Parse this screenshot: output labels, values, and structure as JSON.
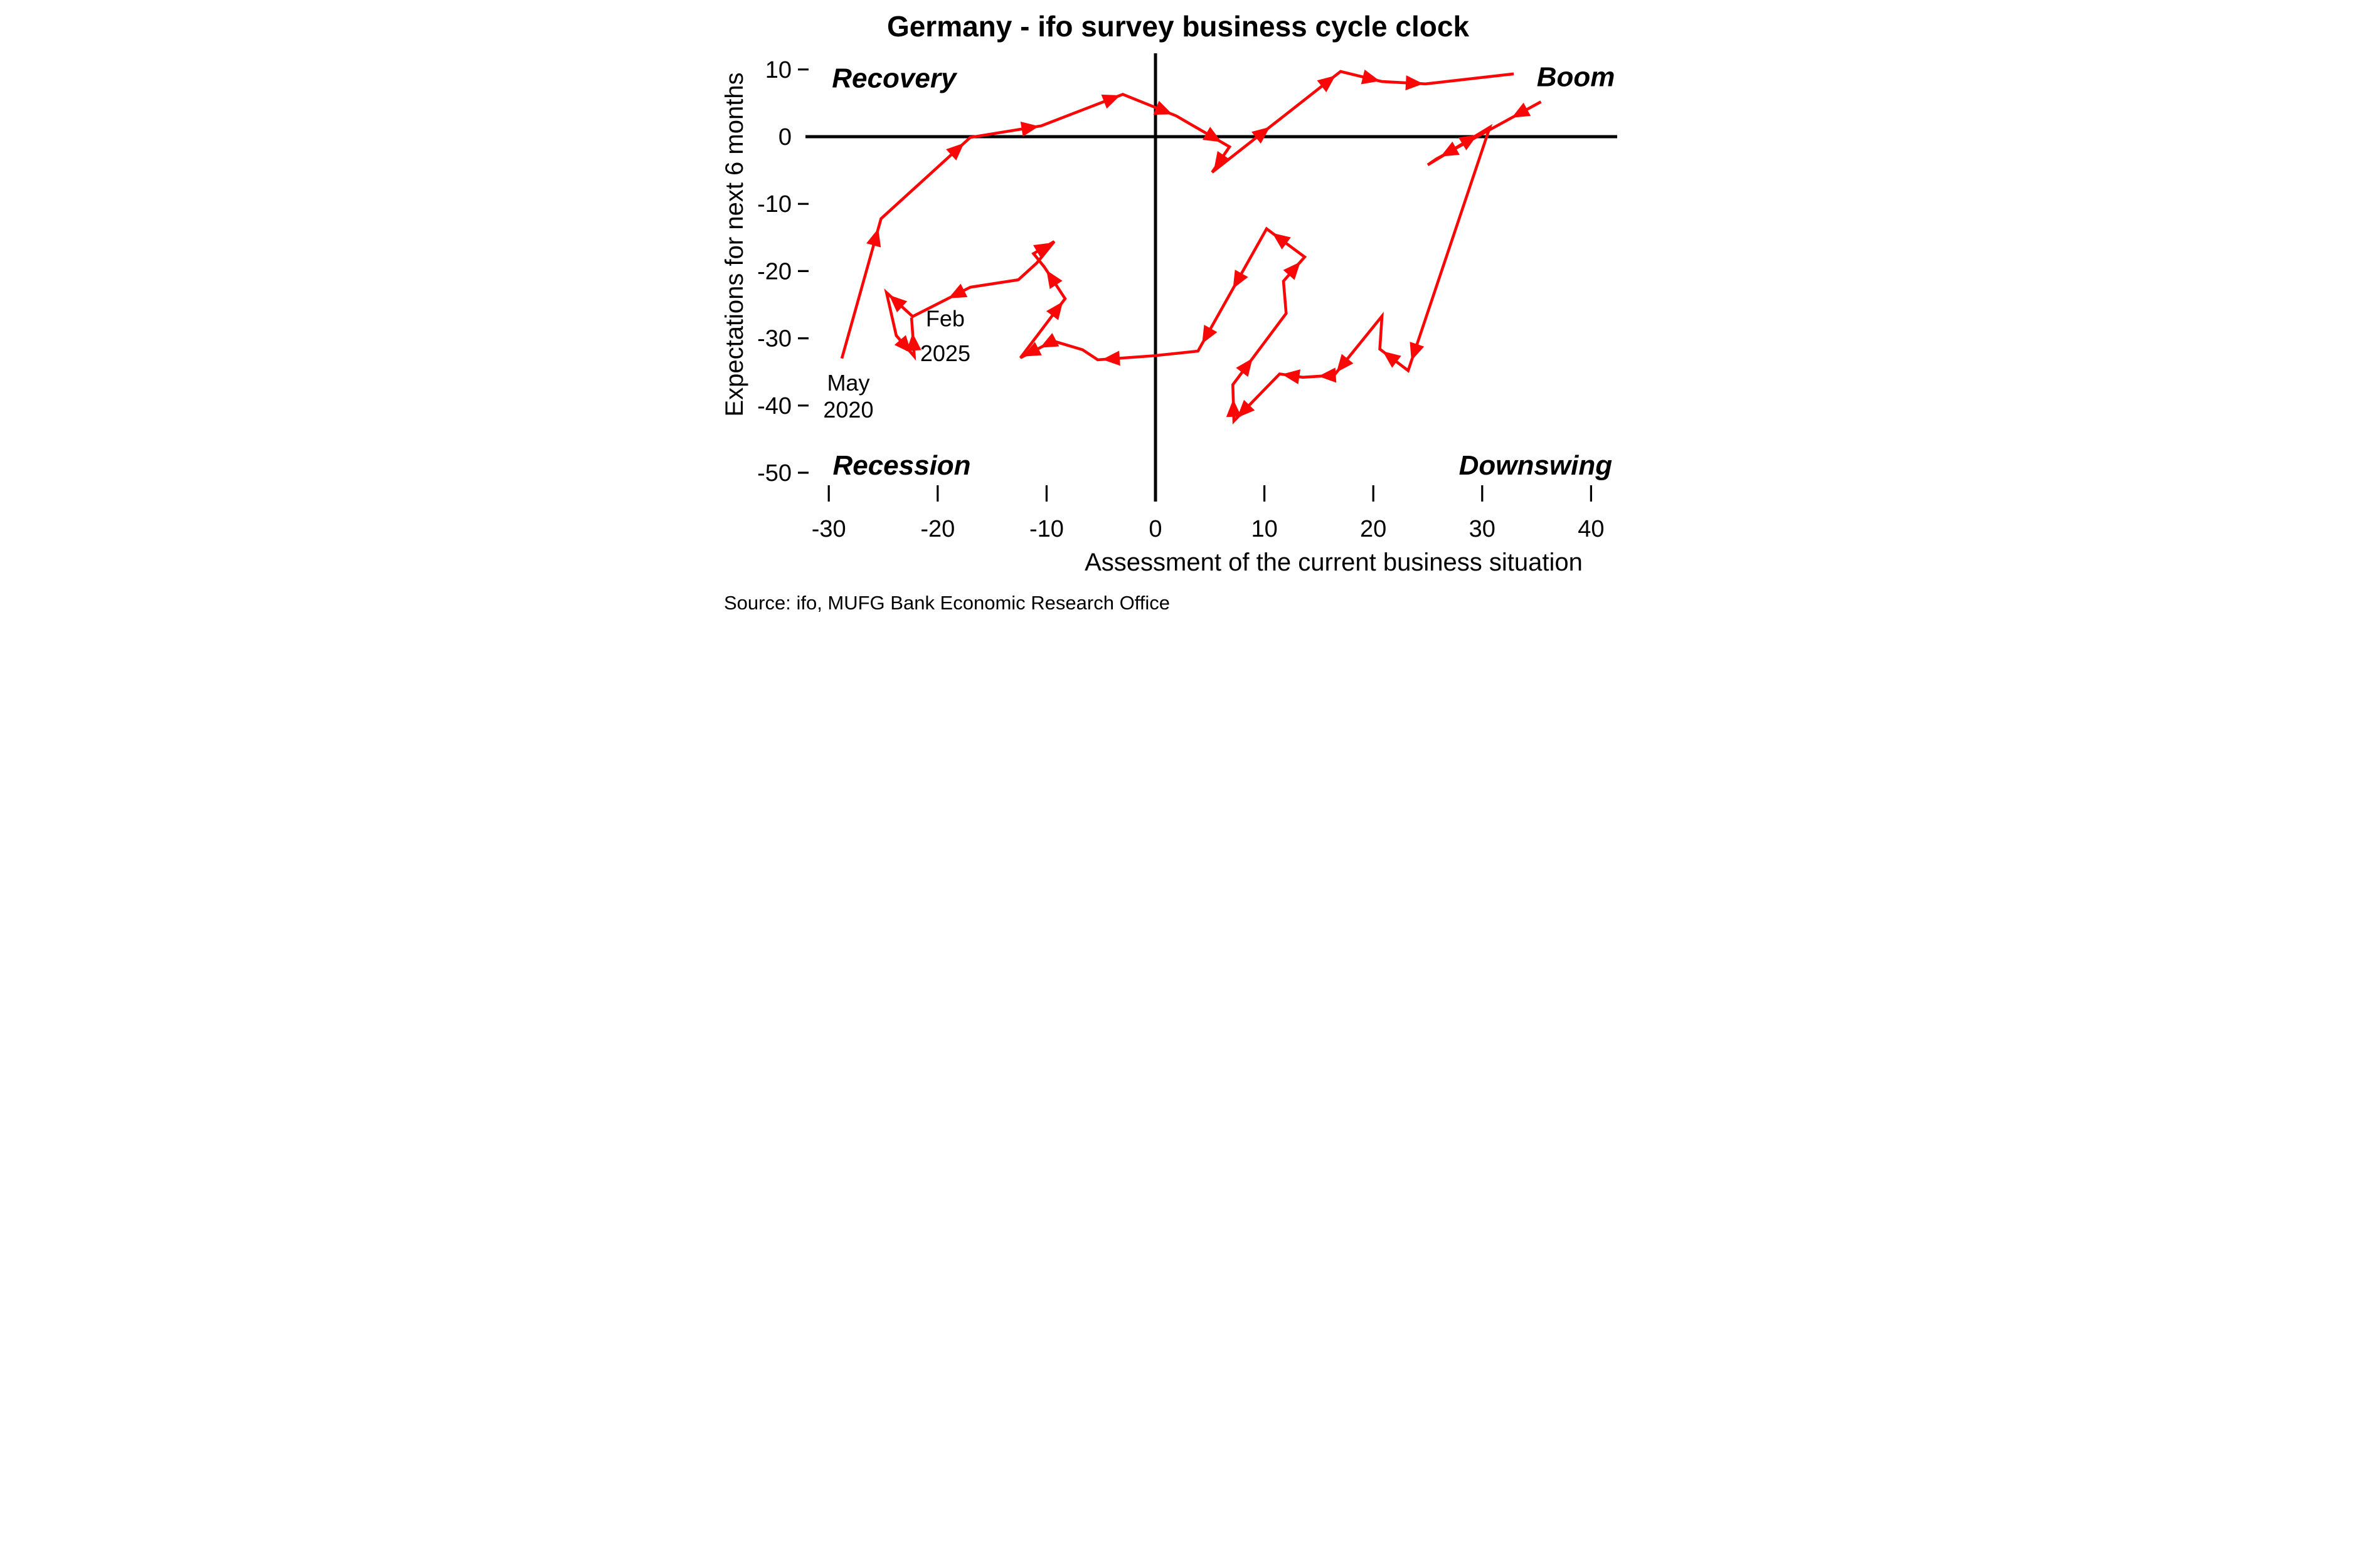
{
  "chart_data": {
    "type": "connected_scatter_path",
    "title": "Germany - ifo survey business cycle clock",
    "xlabel": "Assessment of the current business situation",
    "ylabel": "Expectations for next 6 months",
    "source": "Source: ifo, MUFG Bank Economic Research Office",
    "line_color": "#f90606",
    "axis_color": "#000000",
    "x_ticks": [
      -30,
      -20,
      -10,
      0,
      10,
      20,
      30,
      40
    ],
    "y_ticks": [
      10,
      0,
      -10,
      -20,
      -30,
      -40,
      -50
    ],
    "xlim": [
      -33,
      43
    ],
    "ylim": [
      -54,
      13
    ],
    "grid": false,
    "legend": "none",
    "quadrants": {
      "recovery": {
        "label": "Recovery",
        "x": -24.0,
        "y": 7.3
      },
      "boom": {
        "label": "Boom",
        "x": 38.6,
        "y": 7.5
      },
      "recession": {
        "label": "Recession",
        "x": -23.3,
        "y": -50.3
      },
      "downswing": {
        "label": "Downswing",
        "x": 34.9,
        "y": -50.3
      }
    },
    "annotations": {
      "start": {
        "line1": "May",
        "line2": "2020",
        "x": -28.2,
        "y1": -37.8,
        "y2": -41.8
      },
      "end": {
        "line1": "Feb",
        "line2": "2025",
        "x": -19.3,
        "y1": -28.2,
        "y2": -33.4
      }
    },
    "series": [
      {
        "x": -28.8,
        "y": -33.0
      },
      {
        "x": -25.2,
        "y": -12.2,
        "a": [
          0.93
        ]
      },
      {
        "x": -17.0,
        "y": -0.1,
        "a": [
          0.93
        ]
      },
      {
        "x": -10.5,
        "y": 1.6,
        "a": [
          0.97
        ]
      },
      {
        "x": -3.0,
        "y": 6.3,
        "a": [
          0.97
        ]
      },
      {
        "x": 1.9,
        "y": 3.1,
        "a": [
          0.93
        ]
      },
      {
        "x": 6.8,
        "y": -1.5,
        "a": [
          0.85
        ]
      },
      {
        "x": 5.2,
        "y": -5.3,
        "a": [
          0.9
        ]
      },
      {
        "x": 17.0,
        "y": 9.7,
        "a": [
          0.45,
          0.96
        ]
      },
      {
        "x": 20.8,
        "y": 8.2,
        "a": [
          0.95
        ]
      },
      {
        "x": 24.8,
        "y": 7.85,
        "a": [
          0.95
        ]
      },
      {
        "x": 32.9,
        "y": 9.35
      },
      {
        "x": 35.4,
        "y": 5.2,
        "g": 1
      },
      {
        "x": 25.8,
        "y": -3.3,
        "a": [
          0.28,
          0.96
        ]
      },
      {
        "x": 25.0,
        "y": -4.2
      },
      {
        "x": 30.7,
        "y": 1.4,
        "a": [
          0.8
        ]
      },
      {
        "x": 23.2,
        "y": -34.8,
        "a": [
          0.96
        ]
      },
      {
        "x": 20.6,
        "y": -31.6,
        "a": [
          0.9
        ]
      },
      {
        "x": 20.8,
        "y": -26.7
      },
      {
        "x": 16.4,
        "y": -35.5,
        "a": [
          0.95
        ]
      },
      {
        "x": 13.5,
        "y": -35.8,
        "a": [
          0.5
        ]
      },
      {
        "x": 11.4,
        "y": -35.3,
        "a": [
          0.9
        ]
      },
      {
        "x": 7.2,
        "y": -42.3,
        "a": [
          0.93
        ]
      },
      {
        "x": 7.1,
        "y": -36.9,
        "a": [
          0.6
        ]
      },
      {
        "x": 12.0,
        "y": -26.3,
        "a": [
          0.37
        ]
      },
      {
        "x": 11.75,
        "y": -21.5
      },
      {
        "x": 13.7,
        "y": -17.9,
        "a": [
          0.8
        ]
      },
      {
        "x": 10.2,
        "y": -13.7,
        "a": [
          0.85
        ]
      },
      {
        "x": 3.9,
        "y": -31.9,
        "a": [
          0.49,
          0.94
        ]
      },
      {
        "x": -0.2,
        "y": -32.6
      },
      {
        "x": -5.3,
        "y": -33.2,
        "a": [
          0.92
        ]
      },
      {
        "x": -6.7,
        "y": -31.7
      },
      {
        "x": -9.4,
        "y": -30.4
      },
      {
        "x": -12.4,
        "y": -32.9,
        "a": [
          0.4,
          0.93
        ]
      },
      {
        "x": -8.3,
        "y": -24.1,
        "a": [
          0.95
        ]
      },
      {
        "x": -10.2,
        "y": -19.4,
        "a": [
          0.9
        ]
      },
      {
        "x": -11.2,
        "y": -17.4
      },
      {
        "x": -9.3,
        "y": -15.6,
        "a": [
          0.9
        ]
      },
      {
        "x": -10.9,
        "y": -18.8
      },
      {
        "x": -12.6,
        "y": -21.3
      },
      {
        "x": -17.0,
        "y": -22.4
      },
      {
        "x": -22.3,
        "y": -26.75,
        "a": [
          0.38
        ]
      },
      {
        "x": -24.7,
        "y": -23.2,
        "a": [
          0.9
        ]
      },
      {
        "x": -23.8,
        "y": -29.6
      },
      {
        "x": -22.15,
        "y": -32.7,
        "a": [
          0.85
        ]
      },
      {
        "x": -22.4,
        "y": -26.9,
        "a": [
          0.6
        ]
      }
    ]
  }
}
